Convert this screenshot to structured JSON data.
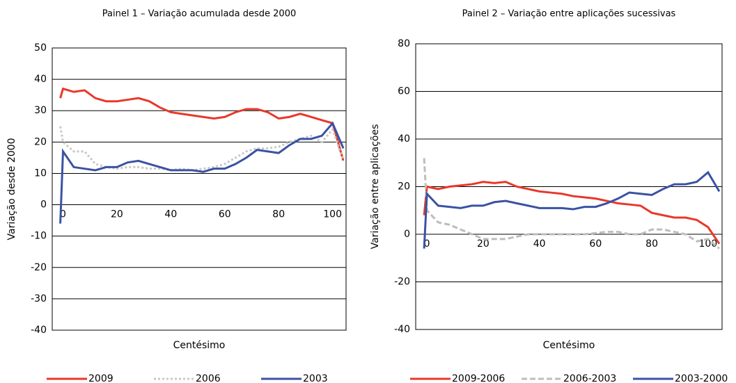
{
  "chart_data": [
    {
      "type": "line",
      "title": "Painel 1 – Variação acumulada desde 2000",
      "x_label": "Centésimo",
      "y_label": "Variação desde 2000",
      "x": [
        -1,
        0,
        4,
        8,
        12,
        16,
        20,
        24,
        28,
        32,
        36,
        40,
        44,
        48,
        52,
        56,
        60,
        64,
        68,
        72,
        76,
        80,
        84,
        88,
        92,
        96,
        100,
        104
      ],
      "xlim": [
        -4,
        105
      ],
      "xticks": [
        0,
        20,
        40,
        60,
        80,
        100
      ],
      "ylim": [
        -40,
        50
      ],
      "yticks": [
        -40,
        -30,
        -20,
        -10,
        0,
        10,
        20,
        30,
        40,
        50
      ],
      "grid": true,
      "legend": "bottom",
      "series": [
        {
          "name": "2009",
          "color": "#e8382a",
          "dash": "solid",
          "values": [
            34,
            37,
            36,
            36.5,
            34,
            33,
            33,
            33.5,
            34,
            33,
            31,
            29.5,
            29,
            28.5,
            28,
            27.5,
            28,
            29.5,
            30.5,
            30.5,
            29.5,
            27.5,
            28,
            29,
            28,
            27,
            26,
            14
          ]
        },
        {
          "name": "2006",
          "color": "#c8c8c8",
          "dash": "dotted",
          "values": [
            25,
            20,
            17,
            17,
            13,
            12,
            11.5,
            12,
            12,
            11.5,
            11.5,
            11,
            11.5,
            11,
            11.5,
            12,
            13,
            15,
            17,
            18,
            18,
            18.5,
            20,
            21,
            22,
            20,
            24,
            14
          ]
        },
        {
          "name": "2003",
          "color": "#3a52a4",
          "dash": "solid",
          "values": [
            -6,
            17,
            12,
            11.5,
            11,
            12,
            12,
            13.5,
            14,
            13,
            12,
            11,
            11,
            11,
            10.5,
            11.5,
            11.5,
            13,
            15,
            17.5,
            17,
            16.5,
            19,
            21,
            21,
            22,
            26,
            18
          ]
        }
      ]
    },
    {
      "type": "line",
      "title": "Painel 2 – Variação entre aplicações sucessivas",
      "x_label": "Centésimo",
      "y_label": "Variação entre aplicações",
      "x": [
        -1,
        0,
        4,
        8,
        12,
        16,
        20,
        24,
        28,
        32,
        36,
        40,
        44,
        48,
        52,
        56,
        60,
        64,
        68,
        72,
        76,
        80,
        84,
        88,
        92,
        96,
        100,
        104
      ],
      "xlim": [
        -4,
        105
      ],
      "xticks": [
        0,
        20,
        40,
        60,
        80,
        100
      ],
      "ylim": [
        -40,
        80
      ],
      "yticks": [
        -40,
        -20,
        0,
        20,
        40,
        60,
        80
      ],
      "grid": true,
      "legend": "bottom",
      "series": [
        {
          "name": "2009-2006",
          "color": "#e8382a",
          "dash": "solid",
          "values": [
            8,
            20,
            19,
            20,
            20.5,
            21,
            22,
            21.5,
            22,
            20,
            19,
            18,
            17.5,
            17,
            16,
            15.5,
            15,
            14,
            13,
            12.5,
            12,
            9,
            8,
            7,
            7,
            6,
            3,
            -4
          ]
        },
        {
          "name": "2006-2003",
          "color": "#bdbdbd",
          "dash": "dashed",
          "values": [
            32,
            10,
            5,
            4,
            2,
            0,
            -2,
            -2,
            -2,
            -1,
            0,
            0,
            0,
            0,
            0,
            0,
            0.5,
            1,
            1,
            0,
            0,
            2,
            2,
            1,
            0,
            -3,
            -2,
            -6
          ]
        },
        {
          "name": "2003-2000",
          "color": "#3a52a4",
          "dash": "solid",
          "values": [
            -6,
            17,
            12,
            11.5,
            11,
            12,
            12,
            13.5,
            14,
            13,
            12,
            11,
            11,
            11,
            10.5,
            11.5,
            11.5,
            13,
            15,
            17.5,
            17,
            16.5,
            19,
            21,
            21,
            22,
            26,
            18
          ]
        }
      ]
    }
  ]
}
